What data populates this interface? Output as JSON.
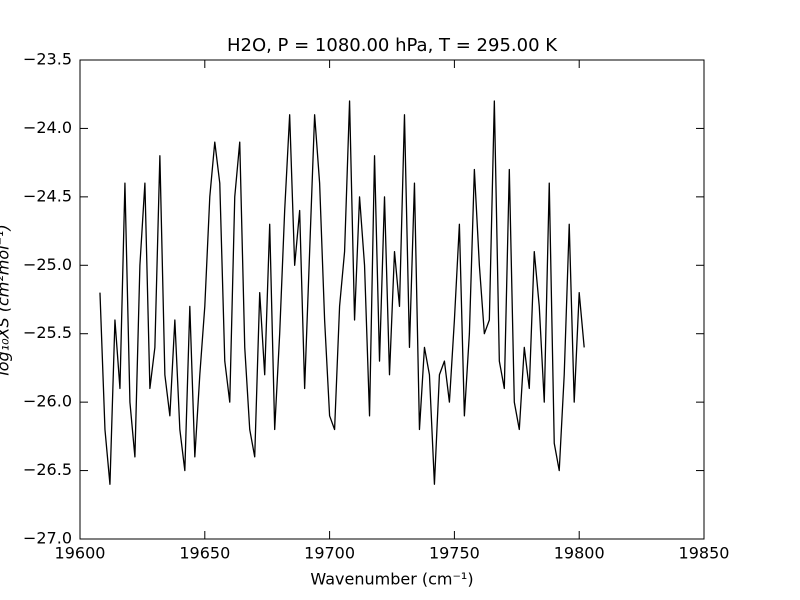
{
  "chart_data": {
    "type": "line",
    "title": "H2O, P = 1080.00 hPa, T = 295.00 K",
    "x_label": "Wavenumber (cm⁻¹)",
    "y_label": "log₁₀XS (cm²mol⁻¹)",
    "x": [
      19608,
      19610,
      19612,
      19614,
      19616,
      19618,
      19620,
      19622,
      19624,
      19626,
      19628,
      19630,
      19632,
      19634,
      19636,
      19638,
      19640,
      19642,
      19644,
      19646,
      19648,
      19650,
      19652,
      19654,
      19656,
      19658,
      19660,
      19662,
      19664,
      19666,
      19668,
      19670,
      19672,
      19674,
      19676,
      19678,
      19680,
      19682,
      19684,
      19686,
      19688,
      19690,
      19692,
      19694,
      19696,
      19698,
      19700,
      19702,
      19704,
      19706,
      19708,
      19710,
      19712,
      19714,
      19716,
      19718,
      19720,
      19722,
      19724,
      19726,
      19728,
      19730,
      19732,
      19734,
      19736,
      19738,
      19740,
      19742,
      19744,
      19746,
      19748,
      19750,
      19752,
      19754,
      19756,
      19758,
      19760,
      19762,
      19764,
      19766,
      19768,
      19770,
      19772,
      19774,
      19776,
      19778,
      19780,
      19782,
      19784,
      19786,
      19788,
      19790,
      19792,
      19794,
      19796,
      19798,
      19800,
      19802
    ],
    "series": [
      {
        "color": "#000000",
        "values": [
          -25.2,
          -26.2,
          -26.6,
          -25.4,
          -25.9,
          -24.4,
          -26.0,
          -26.4,
          -25.0,
          -24.4,
          -25.9,
          -25.6,
          -24.2,
          -25.8,
          -26.1,
          -25.4,
          -26.2,
          -26.5,
          -25.3,
          -26.4,
          -25.8,
          -25.3,
          -24.5,
          -24.1,
          -24.4,
          -25.7,
          -26.0,
          -24.5,
          -24.1,
          -25.6,
          -26.2,
          -26.4,
          -25.2,
          -25.8,
          -24.7,
          -26.2,
          -25.5,
          -24.6,
          -23.9,
          -25.0,
          -24.6,
          -25.9,
          -24.9,
          -23.9,
          -24.4,
          -25.4,
          -26.1,
          -26.2,
          -25.3,
          -24.9,
          -23.8,
          -25.4,
          -24.5,
          -25.0,
          -26.1,
          -24.2,
          -25.7,
          -24.5,
          -25.8,
          -24.9,
          -25.3,
          -23.9,
          -25.6,
          -24.4,
          -26.2,
          -25.6,
          -25.8,
          -26.6,
          -25.8,
          -25.7,
          -26.0,
          -25.4,
          -24.7,
          -26.1,
          -25.5,
          -24.3,
          -25.0,
          -25.5,
          -25.4,
          -23.8,
          -25.7,
          -25.9,
          -24.3,
          -26.0,
          -26.2,
          -25.6,
          -25.9,
          -24.9,
          -25.3,
          -26.0,
          -24.4,
          -26.3,
          -26.5,
          -25.8,
          -24.7,
          -26.0,
          -25.2,
          -25.6
        ]
      }
    ],
    "xlim": [
      19600,
      19850
    ],
    "xticks": [
      19600,
      19650,
      19700,
      19750,
      19800,
      19850
    ],
    "ylim": [
      -27.0,
      -23.5
    ],
    "yticks": [
      {
        "value": -27.0,
        "label": "−27.0"
      },
      {
        "value": -26.5,
        "label": "−26.5"
      },
      {
        "value": -26.0,
        "label": "−26.0"
      },
      {
        "value": -25.5,
        "label": "−25.5"
      },
      {
        "value": -25.0,
        "label": "−25.0"
      },
      {
        "value": -24.5,
        "label": "−24.5"
      },
      {
        "value": -24.0,
        "label": "−24.0"
      },
      {
        "value": -23.5,
        "label": "−23.5"
      }
    ],
    "grid": false
  }
}
